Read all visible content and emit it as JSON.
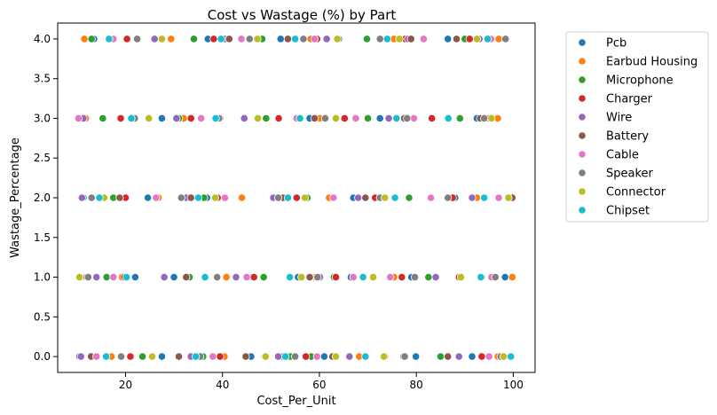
{
  "chart_data": {
    "type": "scatter",
    "title": "Cost vs Wastage (%) by Part",
    "xlabel": "Cost_Per_Unit",
    "ylabel": "Wastage_Percentage",
    "xlim": [
      6.0,
      104.5
    ],
    "ylim": [
      -0.2,
      4.2
    ],
    "xticks": [
      20,
      40,
      60,
      80,
      100
    ],
    "xtick_labels": [
      "20",
      "40",
      "60",
      "80",
      "100"
    ],
    "yticks": [
      0.0,
      0.5,
      1.0,
      1.5,
      2.0,
      2.5,
      3.0,
      3.5,
      4.0
    ],
    "ytick_labels": [
      "0.0",
      "0.5",
      "1.0",
      "1.5",
      "2.0",
      "2.5",
      "3.0",
      "3.5",
      "4.0"
    ],
    "grid": false,
    "legend_position": "outside-right",
    "series": [
      {
        "name": "Pcb",
        "color": "#1f77b4",
        "points": [
          [
            10.5,
            0
          ],
          [
            27.5,
            0
          ],
          [
            45.9,
            0
          ],
          [
            52.5,
            0
          ],
          [
            61.0,
            0
          ],
          [
            79.9,
            0
          ],
          [
            91.5,
            0
          ],
          [
            22.0,
            1
          ],
          [
            30.0,
            1
          ],
          [
            46.2,
            1
          ],
          [
            55.6,
            1
          ],
          [
            66.5,
            1
          ],
          [
            79.0,
            1
          ],
          [
            98.3,
            1
          ],
          [
            11.3,
            2
          ],
          [
            24.6,
            2
          ],
          [
            36.8,
            2
          ],
          [
            53.0,
            2
          ],
          [
            67.0,
            2
          ],
          [
            88.0,
            2
          ],
          [
            27.5,
            3
          ],
          [
            38.5,
            3
          ],
          [
            58.0,
            3
          ],
          [
            72.5,
            3
          ],
          [
            92.5,
            3
          ],
          [
            13.5,
            4
          ],
          [
            37.0,
            4
          ],
          [
            52.0,
            4
          ],
          [
            64.0,
            4
          ],
          [
            86.5,
            4
          ]
        ]
      },
      {
        "name": "Earbud Housing",
        "color": "#ff7f0e",
        "points": [
          [
            17.1,
            0
          ],
          [
            40.4,
            0
          ],
          [
            48.7,
            0
          ],
          [
            68.2,
            0
          ],
          [
            96.8,
            0
          ],
          [
            19.3,
            1
          ],
          [
            40.8,
            1
          ],
          [
            59.2,
            1
          ],
          [
            75.4,
            1
          ],
          [
            99.8,
            1
          ],
          [
            26.8,
            2
          ],
          [
            44.0,
            2
          ],
          [
            62.0,
            2
          ],
          [
            92.5,
            2
          ],
          [
            11.8,
            3
          ],
          [
            32.0,
            3
          ],
          [
            60.1,
            3
          ],
          [
            96.8,
            3
          ],
          [
            11.5,
            4
          ],
          [
            29.4,
            4
          ],
          [
            58.2,
            4
          ],
          [
            75.4,
            4
          ],
          [
            97.0,
            4
          ]
        ]
      },
      {
        "name": "Microphone",
        "color": "#2ca02c",
        "points": [
          [
            23.5,
            0
          ],
          [
            36.0,
            0
          ],
          [
            54.0,
            0
          ],
          [
            58.3,
            0
          ],
          [
            85.0,
            0
          ],
          [
            16.1,
            1
          ],
          [
            33.2,
            1
          ],
          [
            48.5,
            1
          ],
          [
            63.0,
            1
          ],
          [
            82.5,
            1
          ],
          [
            17.5,
            2
          ],
          [
            36.2,
            2
          ],
          [
            57.5,
            2
          ],
          [
            78.5,
            2
          ],
          [
            15.3,
            3
          ],
          [
            31.0,
            3
          ],
          [
            49.0,
            3
          ],
          [
            70.0,
            3
          ],
          [
            89.0,
            3
          ],
          [
            13.0,
            4
          ],
          [
            34.1,
            4
          ],
          [
            48.2,
            4
          ],
          [
            69.8,
            4
          ],
          [
            90.0,
            4
          ]
        ]
      },
      {
        "name": "Charger",
        "color": "#d62728",
        "points": [
          [
            21.0,
            0
          ],
          [
            39.5,
            0
          ],
          [
            57.2,
            0
          ],
          [
            73.5,
            0
          ],
          [
            93.5,
            0
          ],
          [
            19.8,
            1
          ],
          [
            46.5,
            1
          ],
          [
            63.4,
            1
          ],
          [
            77.0,
            1
          ],
          [
            88.8,
            1
          ],
          [
            20.0,
            2
          ],
          [
            39.0,
            2
          ],
          [
            55.3,
            2
          ],
          [
            71.5,
            2
          ],
          [
            87.5,
            2
          ],
          [
            19.0,
            3
          ],
          [
            33.5,
            3
          ],
          [
            51.6,
            3
          ],
          [
            65.2,
            3
          ],
          [
            83.2,
            3
          ],
          [
            20.3,
            4
          ],
          [
            38.2,
            4
          ],
          [
            59.5,
            4
          ],
          [
            77.7,
            4
          ],
          [
            91.0,
            4
          ]
        ]
      },
      {
        "name": "Wire",
        "color": "#9467bd",
        "points": [
          [
            10.8,
            0
          ],
          [
            33.5,
            0
          ],
          [
            51.5,
            0
          ],
          [
            66.2,
            0
          ],
          [
            88.8,
            0
          ],
          [
            14.0,
            1
          ],
          [
            28.0,
            1
          ],
          [
            42.8,
            1
          ],
          [
            60.1,
            1
          ],
          [
            84.0,
            1
          ],
          [
            11.0,
            2
          ],
          [
            32.5,
            2
          ],
          [
            50.5,
            2
          ],
          [
            68.0,
            2
          ],
          [
            91.5,
            2
          ],
          [
            11.3,
            3
          ],
          [
            30.5,
            3
          ],
          [
            44.5,
            3
          ],
          [
            74.3,
            3
          ],
          [
            95.0,
            3
          ],
          [
            26.0,
            4
          ],
          [
            40.5,
            4
          ],
          [
            61.5,
            4
          ],
          [
            78.3,
            4
          ],
          [
            93.0,
            4
          ]
        ]
      },
      {
        "name": "Battery",
        "color": "#8c564b",
        "points": [
          [
            12.9,
            0
          ],
          [
            31.0,
            0
          ],
          [
            44.8,
            0
          ],
          [
            62.7,
            0
          ],
          [
            86.5,
            0
          ],
          [
            12.0,
            1
          ],
          [
            32.5,
            1
          ],
          [
            58.0,
            1
          ],
          [
            71.0,
            1
          ],
          [
            93.5,
            1
          ],
          [
            18.8,
            2
          ],
          [
            33.5,
            2
          ],
          [
            52.5,
            2
          ],
          [
            69.5,
            2
          ],
          [
            99.8,
            2
          ],
          [
            24.9,
            3
          ],
          [
            39.5,
            3
          ],
          [
            59.0,
            3
          ],
          [
            77.5,
            3
          ],
          [
            93.2,
            3
          ],
          [
            22.5,
            4
          ],
          [
            41.4,
            4
          ],
          [
            53.5,
            4
          ],
          [
            78.9,
            4
          ],
          [
            88.3,
            4
          ]
        ]
      },
      {
        "name": "Cable",
        "color": "#e377c2",
        "points": [
          [
            14.0,
            0
          ],
          [
            38.0,
            0
          ],
          [
            59.5,
            0
          ],
          [
            77.3,
            0
          ],
          [
            95.0,
            0
          ],
          [
            17.5,
            1
          ],
          [
            45.0,
            1
          ],
          [
            67.0,
            1
          ],
          [
            74.6,
            1
          ],
          [
            95.5,
            1
          ],
          [
            26.3,
            2
          ],
          [
            40.5,
            2
          ],
          [
            62.9,
            2
          ],
          [
            83.0,
            2
          ],
          [
            97.0,
            2
          ],
          [
            10.3,
            3
          ],
          [
            35.6,
            3
          ],
          [
            55.3,
            3
          ],
          [
            67.5,
            3
          ],
          [
            79.5,
            3
          ],
          [
            17.5,
            4
          ],
          [
            43.9,
            4
          ],
          [
            59.0,
            4
          ],
          [
            81.5,
            4
          ],
          [
            95.4,
            4
          ]
        ]
      },
      {
        "name": "Speaker",
        "color": "#7f7f7f",
        "points": [
          [
            19.1,
            0
          ],
          [
            35.4,
            0
          ],
          [
            55.0,
            0
          ],
          [
            77.6,
            0
          ],
          [
            97.4,
            0
          ],
          [
            12.3,
            1
          ],
          [
            38.9,
            1
          ],
          [
            59.6,
            1
          ],
          [
            79.7,
            1
          ],
          [
            96.3,
            1
          ],
          [
            13.0,
            2
          ],
          [
            31.5,
            2
          ],
          [
            51.5,
            2
          ],
          [
            72.5,
            2
          ],
          [
            86.5,
            2
          ],
          [
            21.9,
            3
          ],
          [
            39.3,
            3
          ],
          [
            61.2,
            3
          ],
          [
            78.1,
            3
          ],
          [
            94.0,
            3
          ],
          [
            22.4,
            4
          ],
          [
            45.6,
            4
          ],
          [
            56.7,
            4
          ],
          [
            72.5,
            4
          ],
          [
            98.4,
            4
          ]
        ]
      },
      {
        "name": "Connector",
        "color": "#bcbd22",
        "points": [
          [
            25.5,
            0
          ],
          [
            48.9,
            0
          ],
          [
            63.4,
            0
          ],
          [
            73.3,
            0
          ],
          [
            98.0,
            0
          ],
          [
            10.5,
            1
          ],
          [
            36.5,
            1
          ],
          [
            56.3,
            1
          ],
          [
            71.1,
            1
          ],
          [
            89.2,
            1
          ],
          [
            15.6,
            2
          ],
          [
            38.5,
            2
          ],
          [
            57.0,
            2
          ],
          [
            73.5,
            2
          ],
          [
            99.0,
            2
          ],
          [
            24.8,
            3
          ],
          [
            47.3,
            3
          ],
          [
            63.4,
            3
          ],
          [
            76.0,
            3
          ],
          [
            95.5,
            3
          ],
          [
            27.5,
            4
          ],
          [
            47.2,
            4
          ],
          [
            63.7,
            4
          ],
          [
            76.5,
            4
          ],
          [
            92.5,
            4
          ]
        ]
      },
      {
        "name": "Chipset",
        "color": "#17becf",
        "points": [
          [
            16.0,
            0
          ],
          [
            34.5,
            0
          ],
          [
            53.0,
            0
          ],
          [
            69.5,
            0
          ],
          [
            99.5,
            0
          ],
          [
            20.2,
            1
          ],
          [
            36.4,
            1
          ],
          [
            53.9,
            1
          ],
          [
            69.0,
            1
          ],
          [
            93.3,
            1
          ],
          [
            14.6,
            2
          ],
          [
            35.0,
            2
          ],
          [
            53.5,
            2
          ],
          [
            75.6,
            2
          ],
          [
            94.0,
            2
          ],
          [
            21.2,
            3
          ],
          [
            38.6,
            3
          ],
          [
            56.0,
            3
          ],
          [
            75.9,
            3
          ],
          [
            86.6,
            3
          ],
          [
            16.6,
            4
          ],
          [
            39.7,
            4
          ],
          [
            55.0,
            4
          ],
          [
            74.0,
            4
          ],
          [
            94.7,
            4
          ]
        ]
      }
    ]
  }
}
